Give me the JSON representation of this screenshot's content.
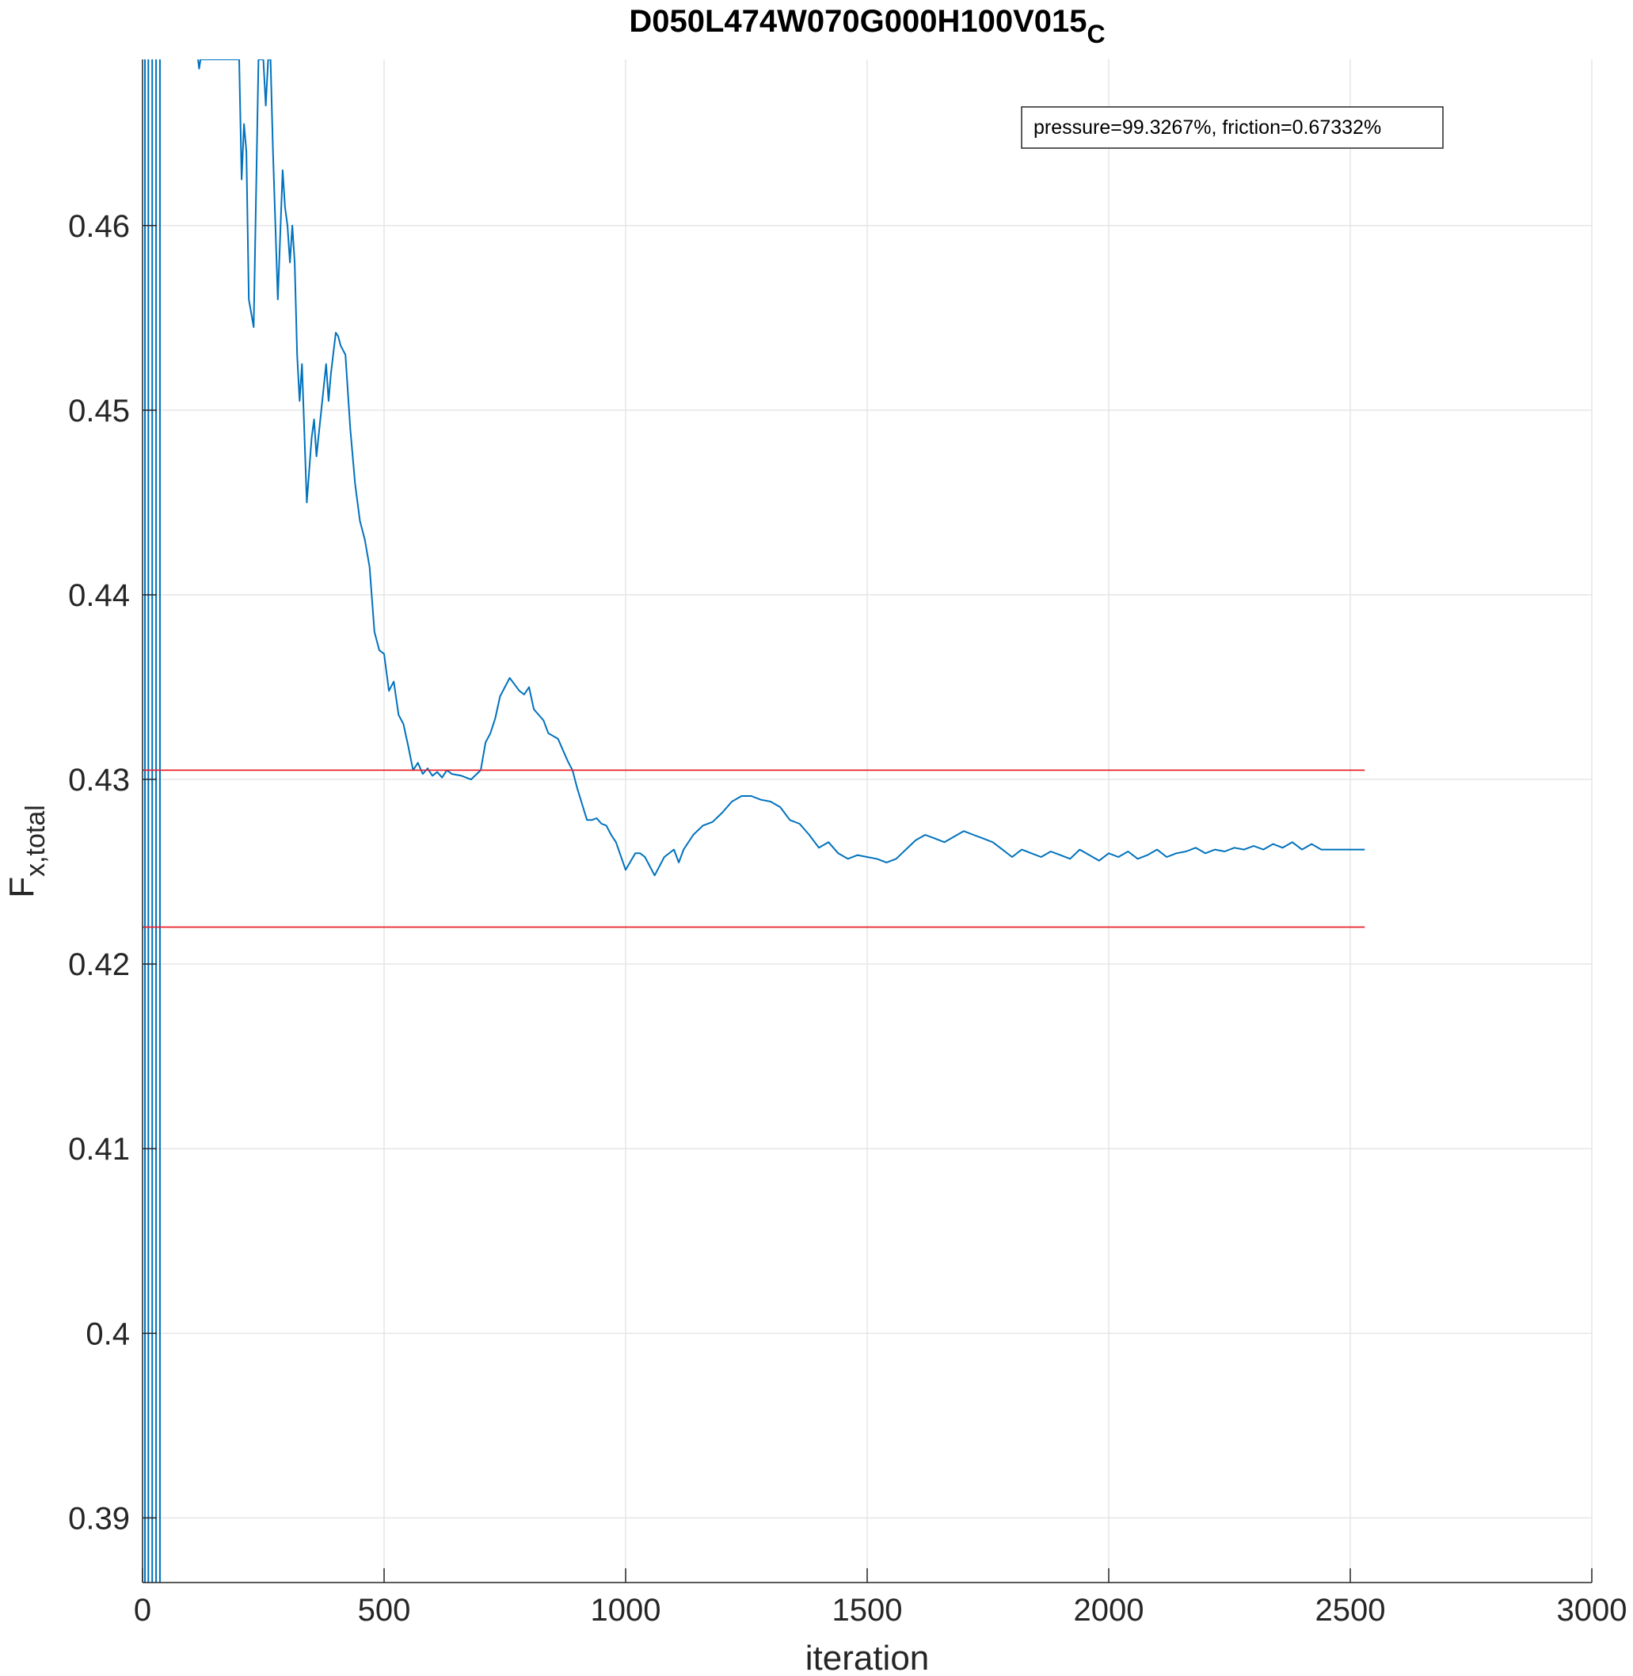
{
  "chart_data": {
    "type": "line",
    "title": "D050L474W070G000H100V015",
    "title_subscript": "C",
    "xlabel": "iteration",
    "ylabel": "F",
    "ylabel_subscript": "x,total",
    "xlim": [
      0,
      3000
    ],
    "ylim": [
      0.3865,
      0.469
    ],
    "xticks": [
      0,
      500,
      1000,
      1500,
      2000,
      2500,
      3000
    ],
    "xtick_labels": [
      "0",
      "500",
      "1000",
      "1500",
      "2000",
      "2500",
      "3000"
    ],
    "yticks": [
      0.39,
      0.4,
      0.41,
      0.42,
      0.43,
      0.44,
      0.45,
      0.46
    ],
    "ytick_labels": [
      "0.39",
      "0.4",
      "0.41",
      "0.42",
      "0.43",
      "0.44",
      "0.45",
      "0.46"
    ],
    "grid": true,
    "annotation": "pressure=99.3267%, friction=0.67332%",
    "colors": {
      "series": "#0072BD",
      "bounds": "#E8202A",
      "grid": "#E6E6E6",
      "axis": "#262626"
    },
    "early_oscillation_x": [
      5,
      12,
      20,
      28,
      36
    ],
    "series": [
      {
        "color": "#0072BD",
        "x": [
          115,
          117,
          120,
          200,
          205,
          210,
          215,
          220,
          230,
          240,
          245,
          250,
          255,
          260,
          265,
          270,
          280,
          290,
          295,
          300,
          305,
          310,
          315,
          320,
          325,
          330,
          340,
          350,
          355,
          360,
          370,
          380,
          385,
          390,
          400,
          405,
          410,
          420,
          430,
          440,
          450,
          460,
          470,
          480,
          490,
          500,
          510,
          520,
          530,
          540,
          550,
          560,
          570,
          580,
          590,
          600,
          610,
          620,
          630,
          640,
          660,
          680,
          700,
          710,
          720,
          730,
          740,
          760,
          780,
          790,
          800,
          810,
          820,
          830,
          840,
          860,
          880,
          890,
          900,
          920,
          930,
          940,
          950,
          960,
          970,
          980,
          1000,
          1020,
          1030,
          1040,
          1050,
          1060,
          1080,
          1100,
          1110,
          1120,
          1140,
          1160,
          1180,
          1200,
          1220,
          1240,
          1260,
          1280,
          1300,
          1320,
          1340,
          1360,
          1380,
          1400,
          1420,
          1440,
          1460,
          1480,
          1500,
          1520,
          1540,
          1560,
          1580,
          1600,
          1620,
          1640,
          1660,
          1680,
          1700,
          1720,
          1740,
          1760,
          1780,
          1800,
          1820,
          1840,
          1860,
          1880,
          1900,
          1920,
          1940,
          1960,
          1980,
          2000,
          2020,
          2040,
          2060,
          2080,
          2100,
          2120,
          2140,
          2160,
          2180,
          2200,
          2220,
          2240,
          2260,
          2280,
          2300,
          2320,
          2340,
          2360,
          2380,
          2400,
          2420,
          2440,
          2460,
          2480,
          2500,
          2520,
          2530
        ],
        "y": [
          0.469,
          0.4685,
          0.469,
          0.469,
          0.4625,
          0.4655,
          0.464,
          0.456,
          0.4545,
          0.469,
          0.469,
          0.469,
          0.4665,
          0.469,
          0.469,
          0.464,
          0.456,
          0.463,
          0.461,
          0.46,
          0.458,
          0.46,
          0.458,
          0.453,
          0.4505,
          0.4525,
          0.445,
          0.4485,
          0.4495,
          0.4475,
          0.45,
          0.4525,
          0.4505,
          0.452,
          0.4542,
          0.454,
          0.4535,
          0.453,
          0.449,
          0.446,
          0.444,
          0.443,
          0.4415,
          0.438,
          0.437,
          0.4368,
          0.4348,
          0.4353,
          0.4335,
          0.433,
          0.4318,
          0.4305,
          0.4309,
          0.4303,
          0.4306,
          0.4302,
          0.4304,
          0.4301,
          0.4305,
          0.4303,
          0.4302,
          0.43,
          0.4305,
          0.432,
          0.4325,
          0.4333,
          0.4345,
          0.4355,
          0.4348,
          0.4346,
          0.435,
          0.4338,
          0.4335,
          0.4332,
          0.4325,
          0.4322,
          0.431,
          0.4305,
          0.4295,
          0.4278,
          0.4278,
          0.4279,
          0.4276,
          0.4275,
          0.427,
          0.4266,
          0.4251,
          0.426,
          0.426,
          0.4258,
          0.4253,
          0.4248,
          0.4258,
          0.4262,
          0.4255,
          0.4262,
          0.427,
          0.4275,
          0.4277,
          0.4282,
          0.4288,
          0.4291,
          0.4291,
          0.4289,
          0.4288,
          0.4285,
          0.4278,
          0.4276,
          0.427,
          0.4263,
          0.4266,
          0.426,
          0.4257,
          0.4259,
          0.4258,
          0.4257,
          0.4255,
          0.4257,
          0.4262,
          0.4267,
          0.427,
          0.4268,
          0.4266,
          0.4269,
          0.4272,
          0.427,
          0.4268,
          0.4266,
          0.4262,
          0.4258,
          0.4262,
          0.426,
          0.4258,
          0.4261,
          0.4259,
          0.4257,
          0.4262,
          0.4259,
          0.4256,
          0.426,
          0.4258,
          0.4261,
          0.4257,
          0.4259,
          0.4262,
          0.4258,
          0.426,
          0.4261,
          0.4263,
          0.426,
          0.4262,
          0.4261,
          0.4263,
          0.4262,
          0.4264,
          0.4262,
          0.4265,
          0.4263,
          0.4266,
          0.4262,
          0.4265,
          0.4262,
          0.4262,
          0.4262,
          0.4262,
          0.4262,
          0.4262
        ]
      },
      {
        "color": "#E8202A",
        "x": [
          0,
          2530
        ],
        "y": [
          0.4305,
          0.4305
        ]
      },
      {
        "color": "#E8202A",
        "x": [
          0,
          2530
        ],
        "y": [
          0.422,
          0.422
        ]
      }
    ]
  }
}
